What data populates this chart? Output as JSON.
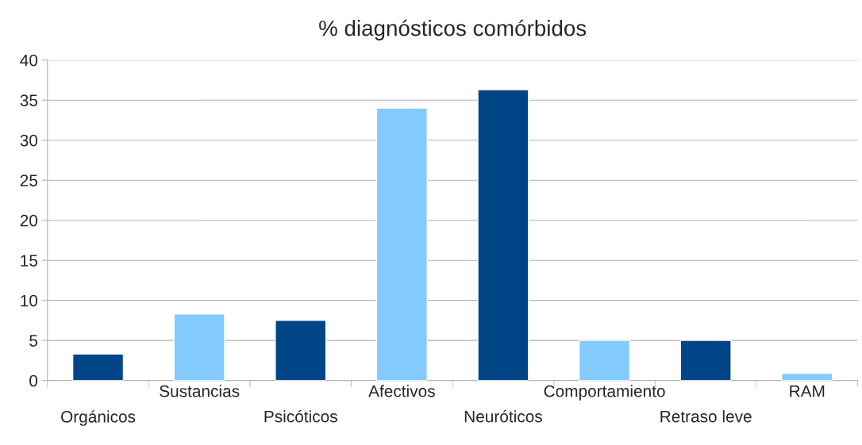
{
  "chart_data": {
    "type": "bar",
    "title": "% diagnósticos comórbidos",
    "categories": [
      "Orgánicos",
      "Sustancias",
      "Psicóticos",
      "Afectivos",
      "Neuróticos",
      "Comportamiento",
      "Retraso leve",
      "RAM"
    ],
    "values": [
      3.3,
      8.3,
      7.5,
      34.0,
      36.3,
      5.0,
      5.0,
      0.9
    ],
    "colors": [
      "#004586",
      "#83caff",
      "#004586",
      "#83caff",
      "#004586",
      "#83caff",
      "#004586",
      "#83caff"
    ],
    "ylim": [
      0,
      40
    ],
    "yticks": [
      0,
      5,
      10,
      15,
      20,
      25,
      30,
      35,
      40
    ],
    "grid": "y"
  }
}
